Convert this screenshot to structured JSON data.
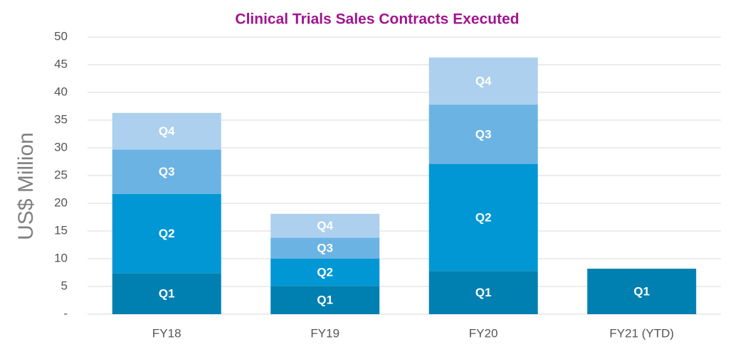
{
  "chart_data": {
    "type": "stacked-bar",
    "title": "Clinical Trials Sales Contracts Executed",
    "y_label": "US$ Million",
    "categories": [
      "FY18",
      "FY19",
      "FY20",
      "FY21 (YTD)"
    ],
    "series": [
      {
        "name": "Q1",
        "color": "#0080b0",
        "values": [
          7.4,
          5.1,
          7.8,
          8.2
        ]
      },
      {
        "name": "Q2",
        "color": "#0097d4",
        "values": [
          14.3,
          4.9,
          19.3,
          null
        ]
      },
      {
        "name": "Q3",
        "color": "#6bb3e3",
        "values": [
          8.0,
          3.8,
          10.7,
          null
        ]
      },
      {
        "name": "Q4",
        "color": "#acd0ee",
        "values": [
          6.6,
          4.3,
          8.5,
          null
        ]
      }
    ],
    "ylim": [
      0,
      50
    ],
    "yticks": [
      {
        "value": 0,
        "label": "-"
      },
      5,
      10,
      15,
      20,
      25,
      30,
      35,
      40,
      45,
      50
    ],
    "grid": true
  }
}
